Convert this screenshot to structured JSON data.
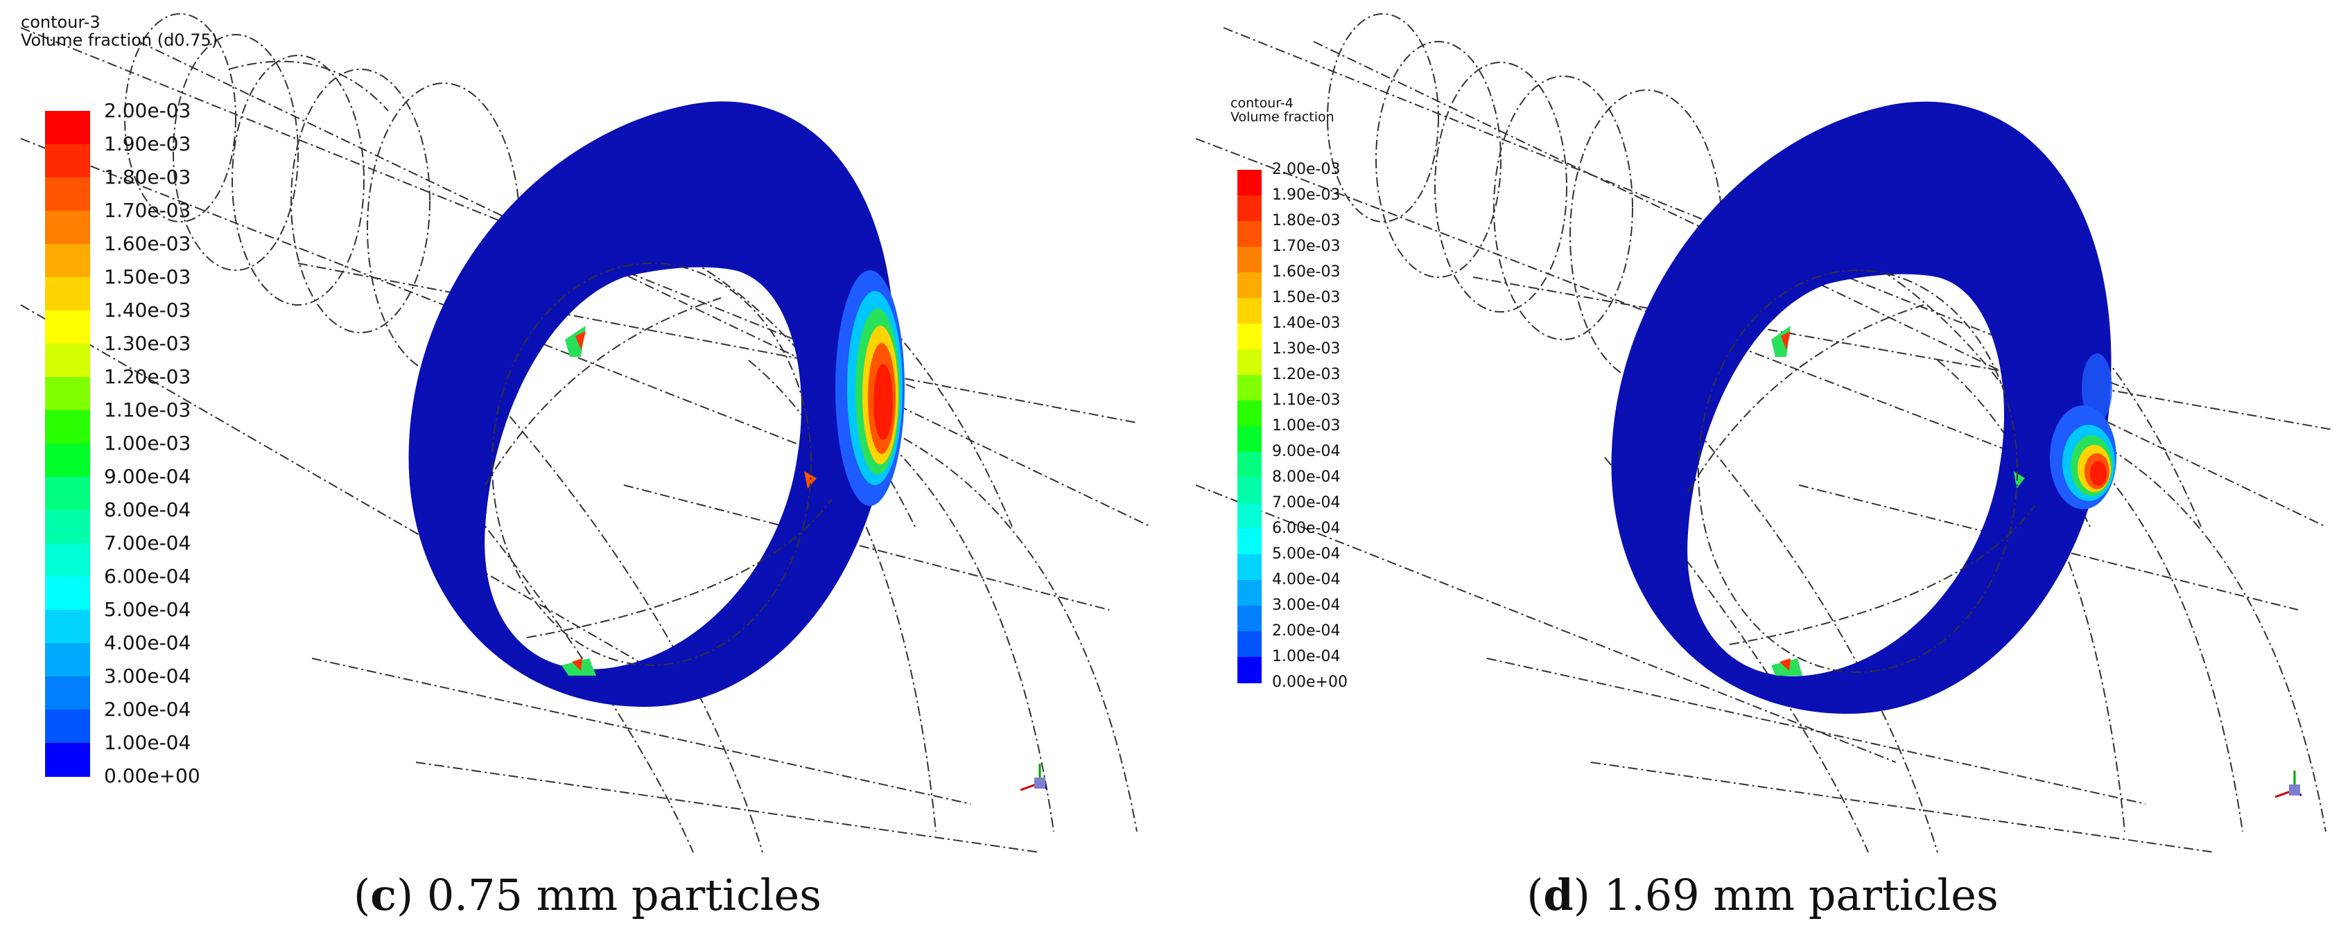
{
  "panels": [
    {
      "legend": {
        "name": "contour-3",
        "quantity": "Volume fraction (d0.75)",
        "ticks": [
          "2.00e-03",
          "1.90e-03",
          "1.80e-03",
          "1.70e-03",
          "1.60e-03",
          "1.50e-03",
          "1.40e-03",
          "1.30e-03",
          "1.20e-03",
          "1.10e-03",
          "1.00e-03",
          "9.00e-04",
          "8.00e-04",
          "7.00e-04",
          "6.00e-04",
          "5.00e-04",
          "4.00e-04",
          "3.00e-04",
          "2.00e-04",
          "1.00e-04",
          "0.00e+00"
        ]
      },
      "caption": {
        "letter": "c",
        "text": "0.75 mm particles"
      }
    },
    {
      "legend": {
        "name": "contour-4",
        "quantity": "Volume fraction",
        "ticks": [
          "2.00e-03",
          "1.90e-03",
          "1.80e-03",
          "1.70e-03",
          "1.60e-03",
          "1.50e-03",
          "1.40e-03",
          "1.30e-03",
          "1.20e-03",
          "1.10e-03",
          "1.00e-03",
          "9.00e-04",
          "8.00e-04",
          "7.00e-04",
          "6.00e-04",
          "5.00e-04",
          "4.00e-04",
          "3.00e-04",
          "2.00e-04",
          "1.00e-04",
          "0.00e+00"
        ]
      },
      "caption": {
        "letter": "d",
        "text": "1.69 mm particles"
      }
    }
  ],
  "colormap": [
    "#ff0000",
    "#ff2a00",
    "#ff5500",
    "#ff7f00",
    "#ffaa00",
    "#ffd400",
    "#ffff00",
    "#d4ff00",
    "#7fff00",
    "#2aff00",
    "#00ff2a",
    "#00ff7f",
    "#00ffaa",
    "#00ffd4",
    "#00ffff",
    "#00d4ff",
    "#00aaff",
    "#007fff",
    "#0055ff",
    "#0000ff"
  ],
  "colors": {
    "plane_base": "#0a10b4",
    "wireframe": "#2a2a2a"
  }
}
